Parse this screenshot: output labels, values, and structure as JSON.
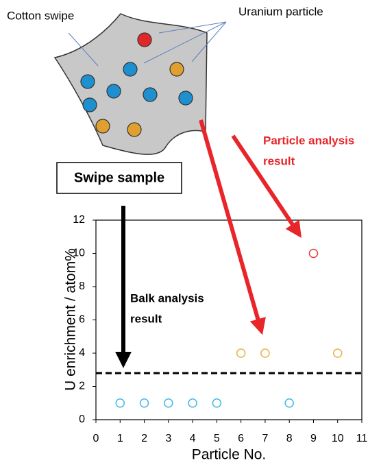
{
  "chart_data": {
    "type": "scatter",
    "xlabel": "Particle No.",
    "ylabel": "U enrichment / atom%",
    "xlim": [
      0,
      11
    ],
    "ylim": [
      0,
      12
    ],
    "xticks": [
      0,
      1,
      2,
      3,
      4,
      5,
      6,
      7,
      8,
      9,
      10,
      11
    ],
    "yticks": [
      0,
      2,
      4,
      6,
      8,
      10,
      12
    ],
    "series": [
      {
        "color": "#3fb8e8",
        "x": [
          1,
          2,
          3,
          4,
          5,
          8
        ],
        "values": [
          1,
          1,
          1,
          1,
          1,
          1
        ]
      },
      {
        "color": "#e8b040",
        "x": [
          6,
          7,
          10
        ],
        "values": [
          4,
          4,
          4
        ]
      },
      {
        "color": "#e83a3a",
        "x": [
          9
        ],
        "values": [
          10
        ]
      }
    ],
    "hline": 2.8,
    "annotations": {
      "cotton_swipe": "Cotton swipe",
      "uranium_particle": "Uranium particle",
      "swipe_sample": "Swipe sample",
      "particle_analysis": [
        "Particle analysis",
        "result"
      ],
      "balk_analysis": [
        "Balk analysis",
        "result"
      ]
    }
  }
}
